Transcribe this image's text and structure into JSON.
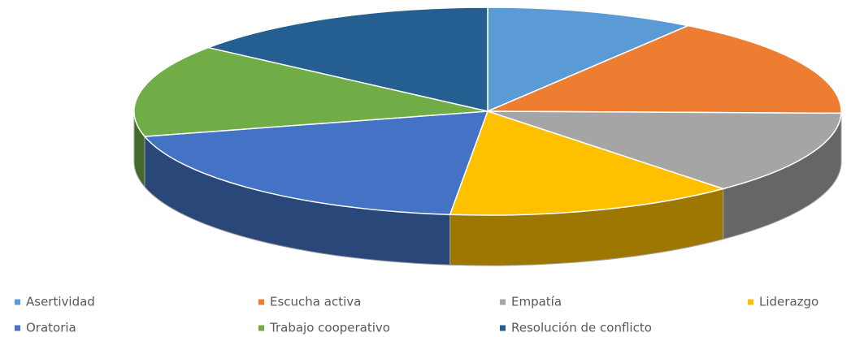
{
  "chart_data": {
    "type": "pie3d",
    "categories": [
      "Asertividad",
      "Escucha activa",
      "Empatía",
      "Liderazgo",
      "Oratoria",
      "Trabajo cooperativo",
      "Resolución de conflicto"
    ],
    "values": [
      9.6,
      15.7,
      13.1,
      13.3,
      19.4,
      14.4,
      14.5
    ],
    "colors": [
      "#5b9bd5",
      "#ed7d31",
      "#a5a5a5",
      "#ffc000",
      "#4472c4",
      "#70ad47",
      "#255e91"
    ],
    "legend": "bottom"
  }
}
